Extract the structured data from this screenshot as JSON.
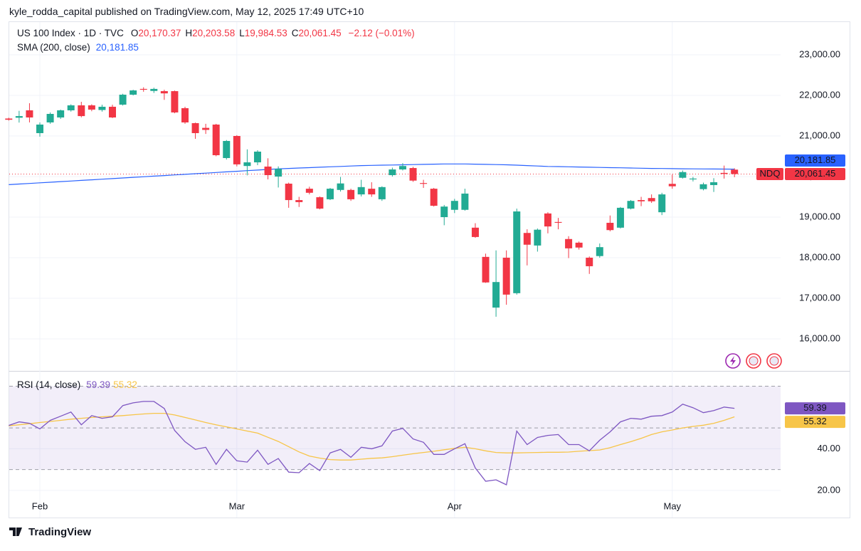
{
  "header": {
    "publisher": "kyle_rodda_capital published on TradingView.com, May 12, 2025 17:49 UTC+10",
    "brand": "TradingView"
  },
  "chart_data": [
    {
      "type": "candlestick",
      "title": "US 100 Index · 1D · TVC",
      "ohlc_header": [
        {
          "key": "O",
          "label": "20,170.37"
        },
        {
          "key": "H",
          "label": "20,203.58"
        },
        {
          "key": "L",
          "label": "19,984.53"
        },
        {
          "key": "C",
          "label": "20,061.45"
        }
      ],
      "change": "−2.12 (−0.01%)",
      "symbol": "NDQ",
      "last_label": "20,061.45",
      "up_color": "#22ab94",
      "down_color": "#f23645",
      "open": [
        21430,
        21450,
        21632,
        21070,
        21334,
        21456,
        21632,
        21755,
        21755,
        21640,
        21720,
        21772,
        22018,
        22160,
        22110,
        22105,
        22105,
        21685,
        21316,
        21200,
        21281,
        20456,
        21000,
        20260,
        20350,
        20246,
        20000,
        19825,
        19420,
        19700,
        19490,
        19440,
        19670,
        19670,
        19560,
        19700,
        19440,
        20035,
        20175,
        20210,
        19840,
        19700,
        19000,
        19180,
        19180,
        18740,
        18020,
        16770,
        18000,
        17125,
        18610,
        18300,
        19090,
        18880,
        18460,
        18370,
        18000,
        18040,
        18860,
        18740,
        19210,
        19420,
        19470,
        19120,
        19820,
        19970,
        19930,
        19690,
        19790,
        20090,
        20170.37
      ],
      "high": [
        21450,
        21620,
        21807,
        21334,
        21580,
        21650,
        21780,
        21842,
        21780,
        21770,
        21770,
        22040,
        22140,
        22200,
        22190,
        22140,
        22120,
        21720,
        21330,
        21300,
        21300,
        20900,
        21020,
        20670,
        20650,
        20450,
        20250,
        19850,
        19500,
        19750,
        19510,
        19720,
        19990,
        19700,
        19920,
        19860,
        19760,
        20220,
        20330,
        20240,
        19920,
        19720,
        19300,
        19450,
        19700,
        18850,
        18100,
        18180,
        18180,
        19210,
        18700,
        18720,
        19120,
        18980,
        18530,
        18400,
        18030,
        18350,
        19040,
        19250,
        19420,
        19500,
        19560,
        19600,
        20050,
        20150,
        19990,
        19850,
        19960,
        20270,
        20203.58
      ],
      "low": [
        21380,
        21330,
        21334,
        20983,
        21300,
        21420,
        21600,
        21460,
        21610,
        21600,
        21440,
        21750,
        22000,
        22090,
        22060,
        21890,
        21560,
        21300,
        20930,
        21050,
        20500,
        20420,
        20250,
        20030,
        20280,
        19930,
        19730,
        19230,
        19250,
        19560,
        19190,
        19420,
        19630,
        19400,
        19510,
        19500,
        19400,
        20000,
        20150,
        19870,
        19720,
        19260,
        18800,
        19100,
        19160,
        18490,
        17380,
        16545,
        16840,
        17090,
        17810,
        18150,
        18600,
        18700,
        17990,
        18200,
        17600,
        18000,
        18650,
        18720,
        19190,
        19270,
        19350,
        19050,
        19700,
        19950,
        19880,
        19660,
        19620,
        19950,
        19984.53
      ],
      "close": [
        21400,
        21490,
        21456,
        21281,
        21544,
        21632,
        21755,
        21490,
        21650,
        21720,
        21456,
        22018,
        22123,
        22140,
        22160,
        22050,
        21580,
        21334,
        21070,
        21150,
        20526,
        20877,
        20300,
        20350,
        20614,
        20035,
        20190,
        19420,
        19370,
        19600,
        19210,
        19700,
        19830,
        19440,
        19740,
        19560,
        19740,
        20175,
        20260,
        19900,
        19820,
        19280,
        19260,
        19400,
        19580,
        18510,
        17390,
        17400,
        17090,
        19140,
        18320,
        18690,
        18770,
        18860,
        18230,
        18250,
        17790,
        18260,
        18680,
        19230,
        19400,
        19390,
        19390,
        19560,
        19760,
        20110,
        19950,
        19810,
        19860,
        20063.57,
        20061.45
      ],
      "sma": {
        "name": "SMA (200, close)",
        "color": "#2962ff",
        "value_label": "20,181.85",
        "values": [
          19800,
          19815,
          19830,
          19845,
          19860,
          19875,
          19890,
          19905,
          19920,
          19935,
          19950,
          19965,
          19980,
          19995,
          20010,
          20025,
          20040,
          20055,
          20070,
          20085,
          20100,
          20115,
          20130,
          20145,
          20160,
          20175,
          20190,
          20200,
          20210,
          20220,
          20230,
          20240,
          20250,
          20260,
          20270,
          20275,
          20280,
          20285,
          20290,
          20295,
          20300,
          20305,
          20310,
          20310,
          20310,
          20305,
          20300,
          20295,
          20290,
          20280,
          20270,
          20260,
          20250,
          20245,
          20240,
          20235,
          20230,
          20225,
          20220,
          20215,
          20210,
          20205,
          20200,
          20198,
          20195,
          20192,
          20190,
          20188,
          20186,
          20184,
          20181.85
        ]
      },
      "ylim": [
        15210,
        23825
      ],
      "yticks": [
        {
          "value": 23000,
          "label": "23,000.00"
        },
        {
          "value": 22000,
          "label": "22,000.00"
        },
        {
          "value": 21000,
          "label": "21,000.00"
        },
        {
          "value": 20000,
          "label": "20,000.00"
        },
        {
          "value": 19000,
          "label": "19,000.00"
        },
        {
          "value": 18000,
          "label": "18,000.00"
        },
        {
          "value": 17000,
          "label": "17,000.00"
        },
        {
          "value": 16000,
          "label": "16,000.00"
        }
      ],
      "grid": true
    },
    {
      "type": "line",
      "title": "RSI (14, close)",
      "categories": [
        null,
        null,
        null,
        "Feb",
        null,
        null,
        null,
        null,
        null,
        null,
        null,
        null,
        null,
        null,
        null,
        null,
        null,
        null,
        null,
        null,
        null,
        null,
        "Mar",
        null,
        null,
        null,
        null,
        null,
        null,
        null,
        null,
        null,
        null,
        null,
        null,
        null,
        null,
        null,
        null,
        null,
        null,
        null,
        null,
        "Apr",
        null,
        null,
        null,
        null,
        null,
        null,
        null,
        null,
        null,
        null,
        null,
        null,
        null,
        null,
        null,
        null,
        null,
        null,
        null,
        null,
        "May",
        null,
        null,
        null,
        null,
        null,
        null
      ],
      "series": [
        {
          "color": "#7e57c2",
          "value_label": "59.39",
          "values": [
            51.2,
            52.9,
            52.2,
            49.5,
            53.6,
            55.6,
            57.6,
            51.5,
            55.9,
            54.6,
            55.3,
            60.7,
            62.0,
            62.7,
            62.7,
            59.3,
            48.8,
            43.4,
            39.7,
            40.7,
            32.5,
            39.7,
            34.2,
            33.6,
            39.3,
            32.5,
            35.3,
            28.8,
            28.5,
            32.9,
            29.5,
            38.0,
            39.7,
            35.9,
            40.7,
            40.0,
            41.4,
            48.5,
            49.8,
            44.7,
            43.1,
            37.3,
            37.3,
            40.0,
            42.4,
            30.8,
            24.4,
            25.1,
            22.7,
            48.5,
            42.0,
            45.4,
            46.4,
            46.8,
            42.0,
            42.0,
            39.0,
            44.1,
            48.1,
            52.9,
            54.6,
            54.2,
            55.6,
            55.9,
            57.6,
            61.4,
            59.7,
            57.3,
            58.3,
            60.0,
            59.39
          ]
        },
        {
          "color": "#f7c548",
          "value_label": "55.32",
          "values": [
            51.0,
            51.5,
            52.0,
            52.6,
            53.1,
            53.6,
            54.2,
            54.6,
            55.0,
            55.3,
            55.6,
            55.9,
            56.3,
            56.7,
            57.0,
            57.0,
            56.2,
            55.0,
            53.8,
            52.6,
            51.5,
            50.5,
            49.5,
            48.5,
            47.5,
            45.5,
            43.5,
            41.0,
            38.5,
            36.5,
            35.5,
            34.8,
            34.6,
            34.6,
            35.0,
            35.4,
            35.6,
            36.2,
            36.9,
            37.6,
            38.2,
            38.8,
            39.5,
            40.2,
            40.7,
            40.0,
            39.0,
            38.2,
            38.0,
            38.0,
            38.1,
            38.2,
            38.3,
            38.3,
            38.4,
            38.8,
            39.1,
            39.4,
            40.5,
            42.0,
            43.4,
            45.0,
            46.8,
            48.1,
            49.0,
            50.0,
            50.7,
            51.3,
            52.2,
            53.6,
            55.32
          ]
        }
      ],
      "levels": [
        70,
        50,
        30
      ],
      "band_color": "#7e57c2",
      "ylim": [
        7,
        77
      ],
      "yticks": [
        {
          "value": 40,
          "label": "40.00"
        },
        {
          "value": 20,
          "label": "20.00"
        }
      ],
      "grid": true
    }
  ]
}
